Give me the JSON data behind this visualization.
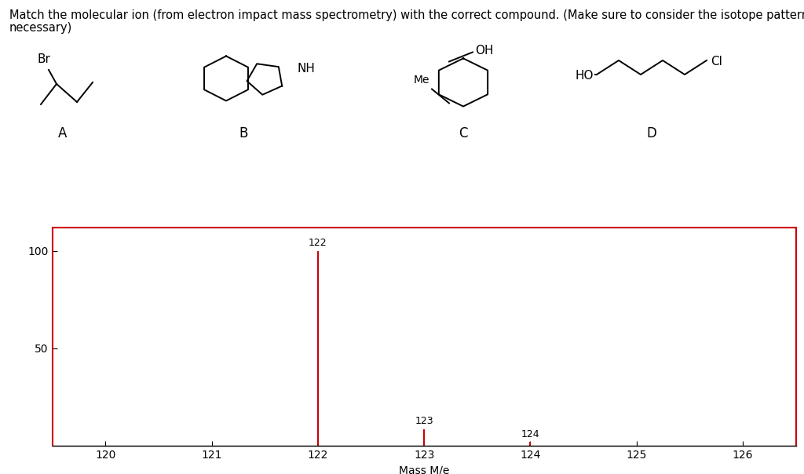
{
  "title_line1": "Match the molecular ion (from electron impact mass spectrometry) with the correct compound. (Make sure to consider the isotope pattern if",
  "title_line2": "necessary)",
  "peaks": {
    "122": 100,
    "123": 8.5,
    "124": 1.8
  },
  "peak_color": "#cc0000",
  "xlabel": "Mass M/e",
  "yticks": [
    50,
    100
  ],
  "xlim": [
    119.5,
    126.5
  ],
  "ylim": [
    0,
    112
  ],
  "xtick_positions": [
    120,
    121,
    122,
    123,
    124,
    125,
    126
  ],
  "plot_border_color": "#cc0000",
  "background_color": "#ffffff",
  "peak_label_fontsize": 9,
  "axis_fontsize": 10,
  "title_fontsize": 10.5
}
